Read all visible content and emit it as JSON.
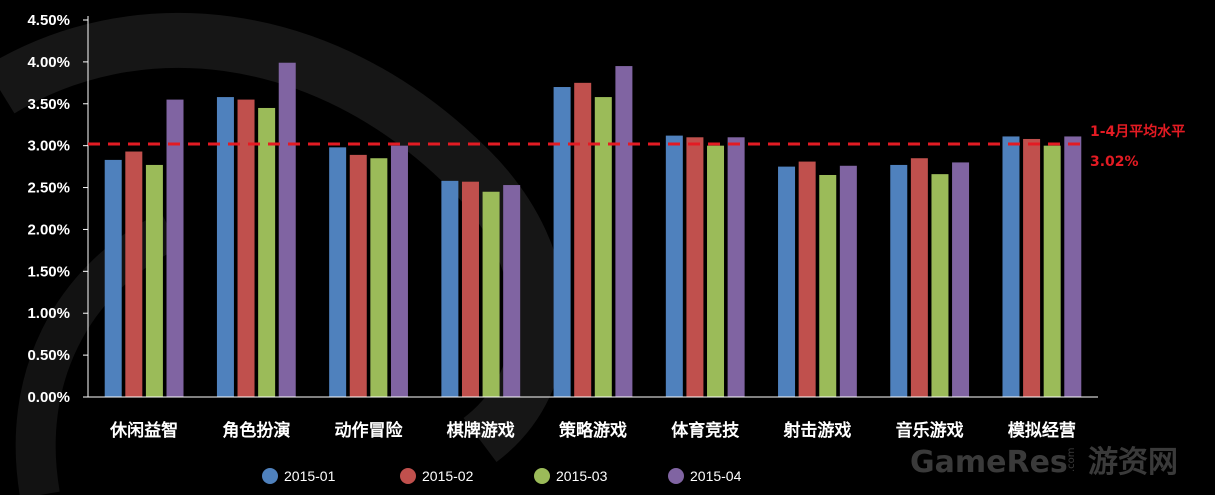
{
  "chart_data": {
    "type": "bar",
    "categories": [
      "休闲益智",
      "角色扮演",
      "动作冒险",
      "棋牌游戏",
      "策略游戏",
      "体育竞技",
      "射击游戏",
      "音乐游戏",
      "模拟经营"
    ],
    "series": [
      {
        "name": "2015-01",
        "color": "#4f81bd",
        "values": [
          2.83,
          3.58,
          2.98,
          2.58,
          3.7,
          3.12,
          2.75,
          2.77,
          3.11
        ]
      },
      {
        "name": "2015-02",
        "color": "#c0504d",
        "values": [
          2.93,
          3.55,
          2.89,
          2.57,
          3.75,
          3.1,
          2.81,
          2.85,
          3.08
        ]
      },
      {
        "name": "2015-03",
        "color": "#9bbb59",
        "values": [
          2.77,
          3.45,
          2.85,
          2.45,
          3.58,
          3.0,
          2.65,
          2.66,
          3.0
        ]
      },
      {
        "name": "2015-04",
        "color": "#8064a2",
        "values": [
          3.55,
          3.99,
          3.0,
          2.53,
          3.95,
          3.1,
          2.76,
          2.8,
          3.11
        ]
      }
    ],
    "y_ticks": [
      "0.00%",
      "0.50%",
      "1.00%",
      "1.50%",
      "2.00%",
      "2.50%",
      "3.00%",
      "3.50%",
      "4.00%",
      "4.50%"
    ],
    "ylim": [
      0,
      4.5
    ],
    "legend_position": "bottom",
    "reference_line": {
      "value": 3.02,
      "label": "1-4月平均水平",
      "value_label": "3.02%",
      "color": "#e31b23"
    }
  },
  "watermark": {
    "text_latin": "GameRes",
    "text_dotcom": ".com",
    "text_cn": "游资网"
  }
}
